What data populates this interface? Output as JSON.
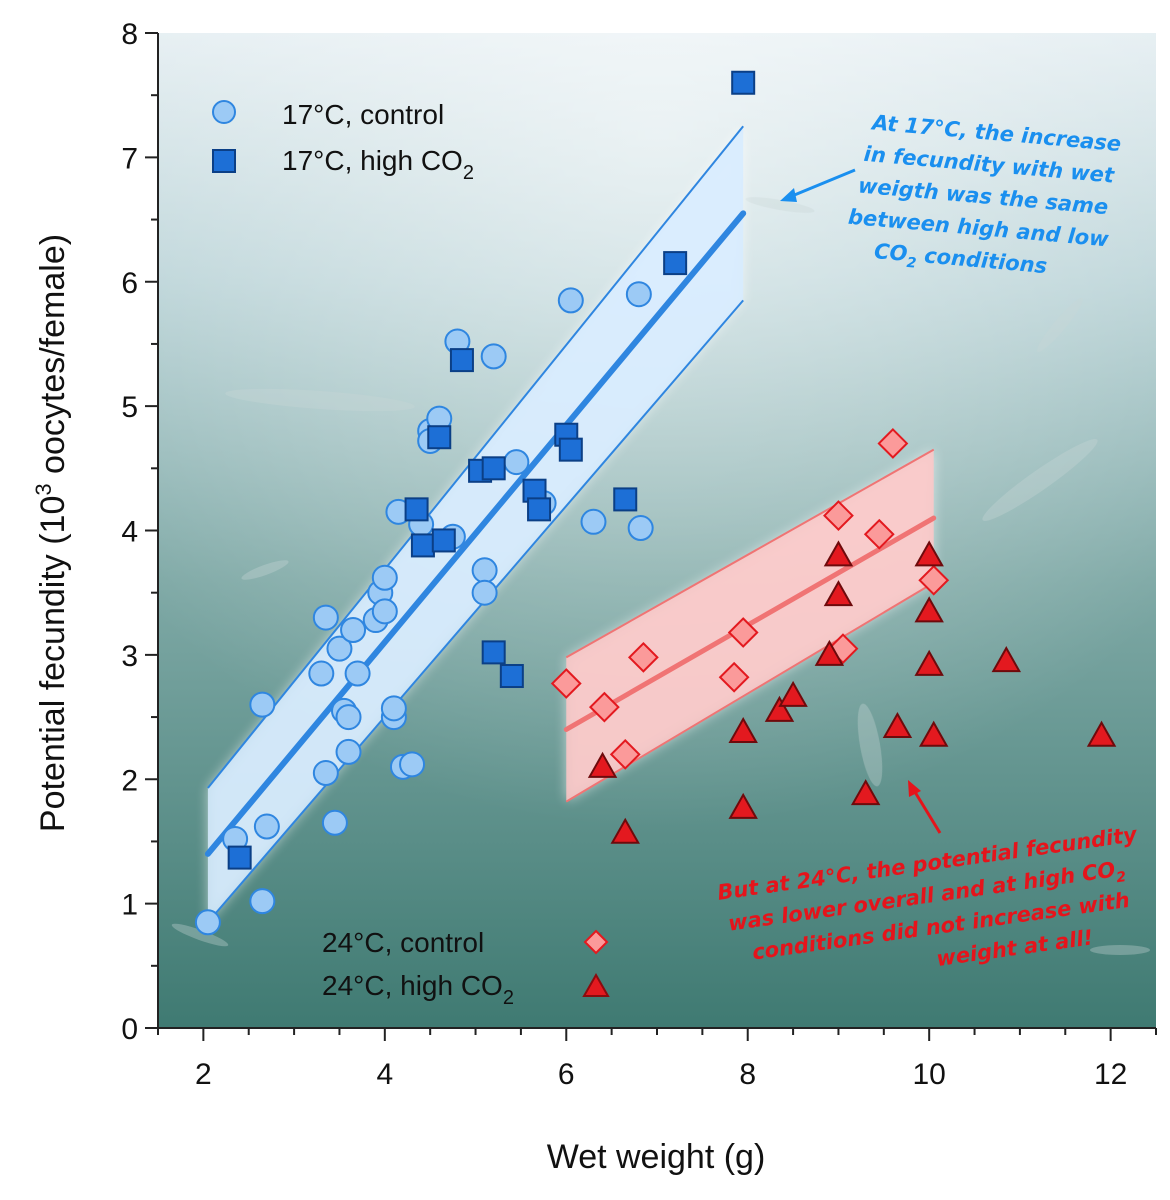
{
  "chart_data": {
    "type": "scatter",
    "xlabel": "Wet weight (g)",
    "ylabel_prefix": "Potential fecundity (10",
    "ylabel_sup": "3",
    "ylabel_suffix": " oocytes/female)",
    "xlim": [
      1.5,
      12.5
    ],
    "ylim": [
      0,
      8
    ],
    "xticks": [
      2,
      4,
      6,
      8,
      10,
      12
    ],
    "yticks": [
      0,
      1,
      2,
      3,
      4,
      5,
      6,
      7,
      8
    ],
    "grid": false,
    "colors": {
      "blue": "#2f86e0",
      "blue_fill": "#9ccaf5",
      "blue_square": "#1d6fd6",
      "red": "#f07474",
      "red_fill": "#fb9a9a",
      "red_triangle": "#e3191f",
      "band_blue": "#d6ebff",
      "band_red": "#ffc7c7"
    },
    "series": [
      {
        "name": "17°C, control",
        "marker": "circle",
        "points": [
          [
            2.05,
            0.85
          ],
          [
            2.35,
            1.52
          ],
          [
            2.65,
            1.02
          ],
          [
            2.7,
            1.62
          ],
          [
            2.65,
            2.6
          ],
          [
            3.3,
            2.85
          ],
          [
            3.35,
            2.05
          ],
          [
            3.35,
            3.3
          ],
          [
            3.45,
            1.65
          ],
          [
            3.5,
            3.05
          ],
          [
            3.55,
            2.55
          ],
          [
            3.6,
            2.5
          ],
          [
            3.6,
            2.22
          ],
          [
            3.65,
            3.2
          ],
          [
            3.7,
            2.85
          ],
          [
            3.9,
            3.28
          ],
          [
            3.95,
            3.5
          ],
          [
            4.0,
            3.35
          ],
          [
            4.0,
            3.62
          ],
          [
            4.1,
            2.5
          ],
          [
            4.1,
            2.57
          ],
          [
            4.15,
            4.15
          ],
          [
            4.2,
            2.1
          ],
          [
            4.3,
            2.12
          ],
          [
            4.4,
            4.05
          ],
          [
            4.5,
            4.8
          ],
          [
            4.5,
            4.72
          ],
          [
            4.6,
            4.9
          ],
          [
            4.75,
            3.95
          ],
          [
            4.8,
            5.52
          ],
          [
            5.1,
            3.68
          ],
          [
            5.1,
            3.5
          ],
          [
            5.2,
            5.4
          ],
          [
            5.45,
            4.55
          ],
          [
            5.75,
            4.22
          ],
          [
            6.05,
            5.85
          ],
          [
            6.3,
            4.07
          ],
          [
            6.8,
            5.9
          ],
          [
            6.82,
            4.02
          ]
        ]
      },
      {
        "name": "17°C, high CO2",
        "marker": "square",
        "points": [
          [
            2.4,
            1.37
          ],
          [
            4.35,
            4.17
          ],
          [
            4.42,
            3.88
          ],
          [
            4.6,
            4.75
          ],
          [
            4.65,
            3.92
          ],
          [
            4.85,
            5.37
          ],
          [
            5.05,
            4.48
          ],
          [
            5.2,
            4.5
          ],
          [
            5.2,
            3.02
          ],
          [
            5.4,
            2.83
          ],
          [
            5.65,
            4.32
          ],
          [
            5.7,
            4.17
          ],
          [
            6.0,
            4.77
          ],
          [
            6.05,
            4.65
          ],
          [
            6.65,
            4.25
          ],
          [
            7.2,
            6.15
          ],
          [
            7.95,
            7.6
          ]
        ]
      },
      {
        "name": "24°C, control",
        "marker": "diamond",
        "points": [
          [
            6.0,
            2.77
          ],
          [
            6.42,
            2.58
          ],
          [
            6.65,
            2.2
          ],
          [
            6.85,
            2.98
          ],
          [
            7.85,
            2.82
          ],
          [
            7.95,
            3.18
          ],
          [
            9.0,
            4.12
          ],
          [
            9.05,
            3.05
          ],
          [
            9.45,
            3.97
          ],
          [
            9.6,
            4.7
          ],
          [
            10.05,
            3.6
          ]
        ]
      },
      {
        "name": "24°C, high CO2",
        "marker": "triangle",
        "points": [
          [
            6.4,
            2.1
          ],
          [
            6.65,
            1.57
          ],
          [
            7.95,
            2.38
          ],
          [
            7.95,
            1.77
          ],
          [
            8.35,
            2.55
          ],
          [
            8.5,
            2.67
          ],
          [
            8.9,
            3.0
          ],
          [
            9.0,
            3.8
          ],
          [
            9.0,
            3.48
          ],
          [
            9.3,
            1.88
          ],
          [
            9.65,
            2.42
          ],
          [
            10.0,
            3.8
          ],
          [
            10.0,
            3.35
          ],
          [
            10.0,
            2.92
          ],
          [
            10.05,
            2.35
          ],
          [
            10.85,
            2.95
          ],
          [
            11.9,
            2.35
          ]
        ]
      }
    ],
    "fits": [
      {
        "group": "17°C",
        "x": [
          2.05,
          7.95
        ],
        "y": [
          1.4,
          6.55
        ],
        "ci_upper": [
          1.93,
          7.25
        ],
        "ci_lower": [
          0.85,
          5.85
        ]
      },
      {
        "group": "24°C",
        "x": [
          6.0,
          10.05
        ],
        "y": [
          2.4,
          4.1
        ],
        "ci_upper": [
          2.98,
          4.65
        ],
        "ci_lower": [
          1.82,
          3.58
        ]
      }
    ],
    "legend_top": [
      {
        "label": "17°C, control",
        "marker": "circle"
      },
      {
        "label_main": "17°C, high CO",
        "label_sub": "2",
        "marker": "square"
      }
    ],
    "legend_bottom": [
      {
        "label": "24°C, control",
        "marker": "diamond"
      },
      {
        "label_main": "24°C, high CO",
        "label_sub": "2",
        "marker": "triangle"
      }
    ],
    "annotations": {
      "blue_lines": [
        "At 17°C, the increase",
        "in fecundity with wet",
        "weigth was the same",
        "between high and low",
        "CO",
        "2",
        " conditions"
      ],
      "red_lines": [
        "But at 24°C, the potential fecundity",
        "was lower overall and at high CO",
        "2",
        "conditions did not increase with",
        "weight at all!"
      ]
    }
  }
}
